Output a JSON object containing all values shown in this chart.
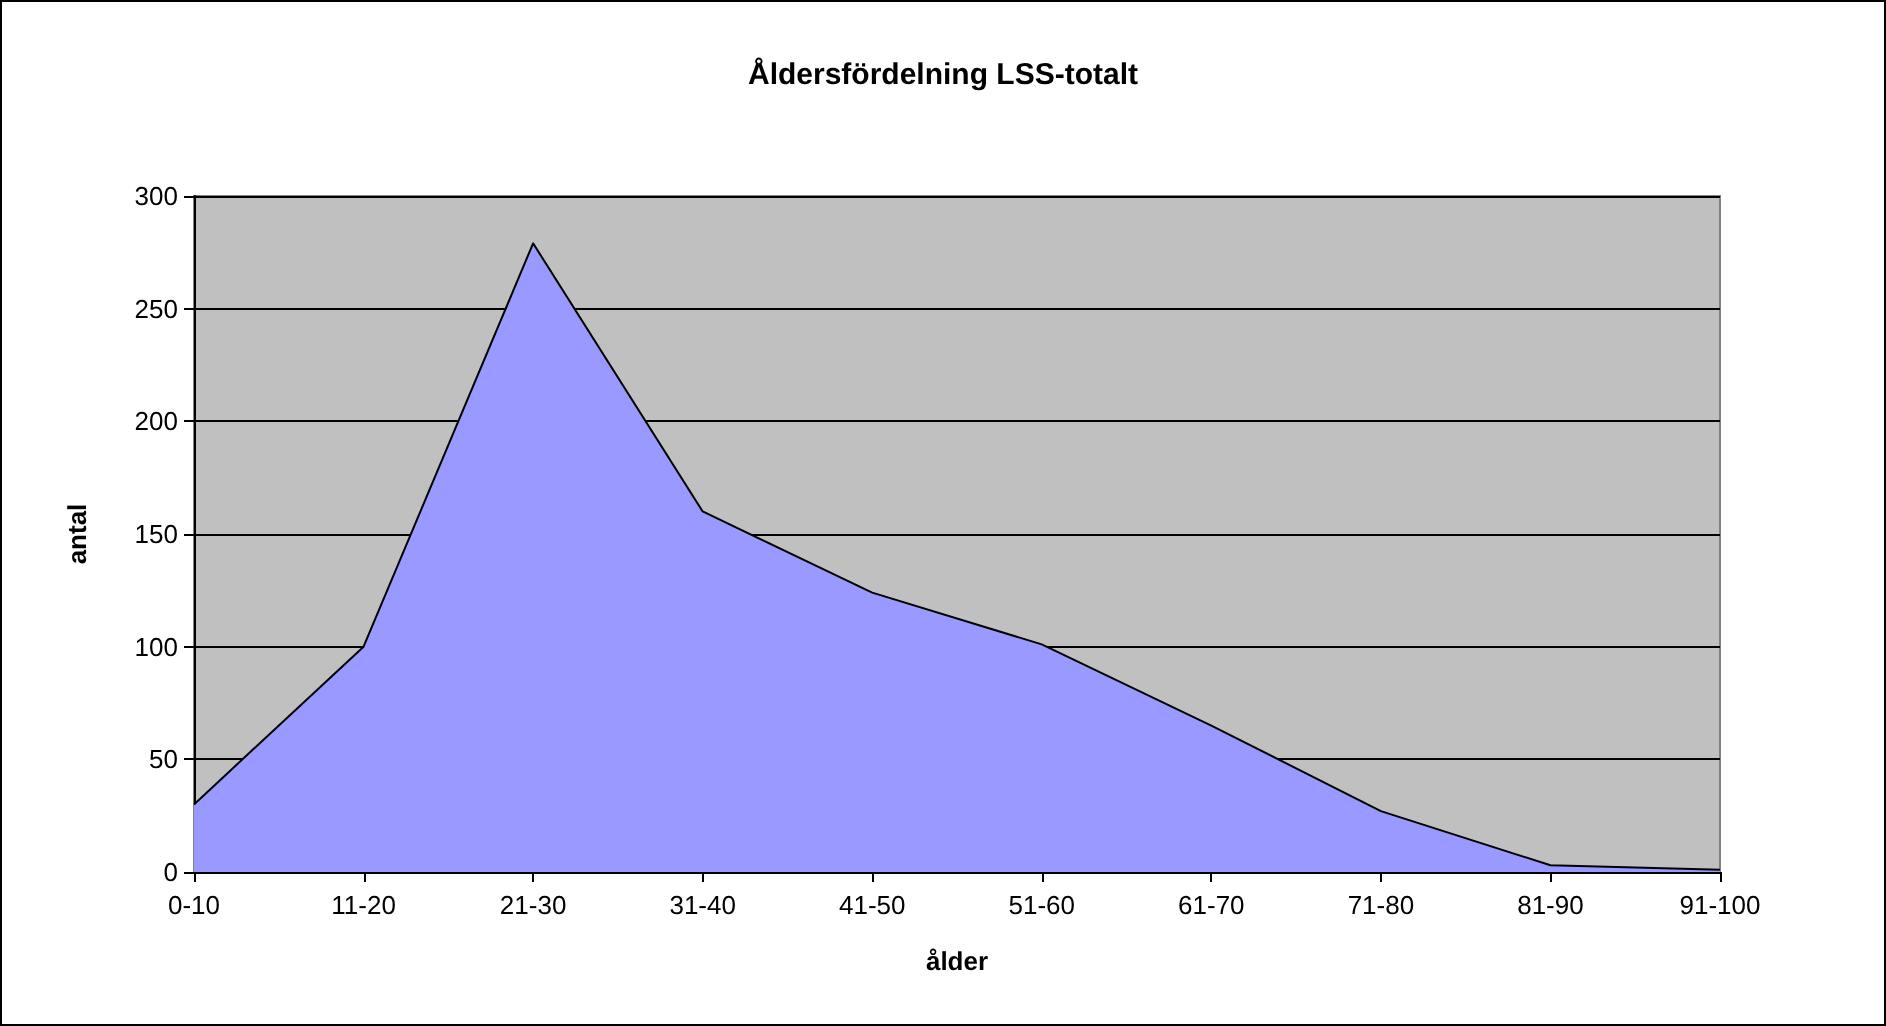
{
  "chart_data": {
    "type": "area",
    "title": "Åldersfördelning LSS-totalt",
    "xlabel": "ålder",
    "ylabel": "antal",
    "categories": [
      "0-10",
      "11-20",
      "21-30",
      "31-40",
      "41-50",
      "51-60",
      "61-70",
      "71-80",
      "81-90",
      "91-100"
    ],
    "series": [
      {
        "color": "#9999ff",
        "values": [
          30,
          100,
          279,
          160,
          124,
          101,
          65,
          27,
          3,
          1
        ]
      }
    ],
    "ylim": [
      0,
      300
    ],
    "yticks": [
      0,
      50,
      100,
      150,
      200,
      250,
      300
    ],
    "grid": "y"
  }
}
